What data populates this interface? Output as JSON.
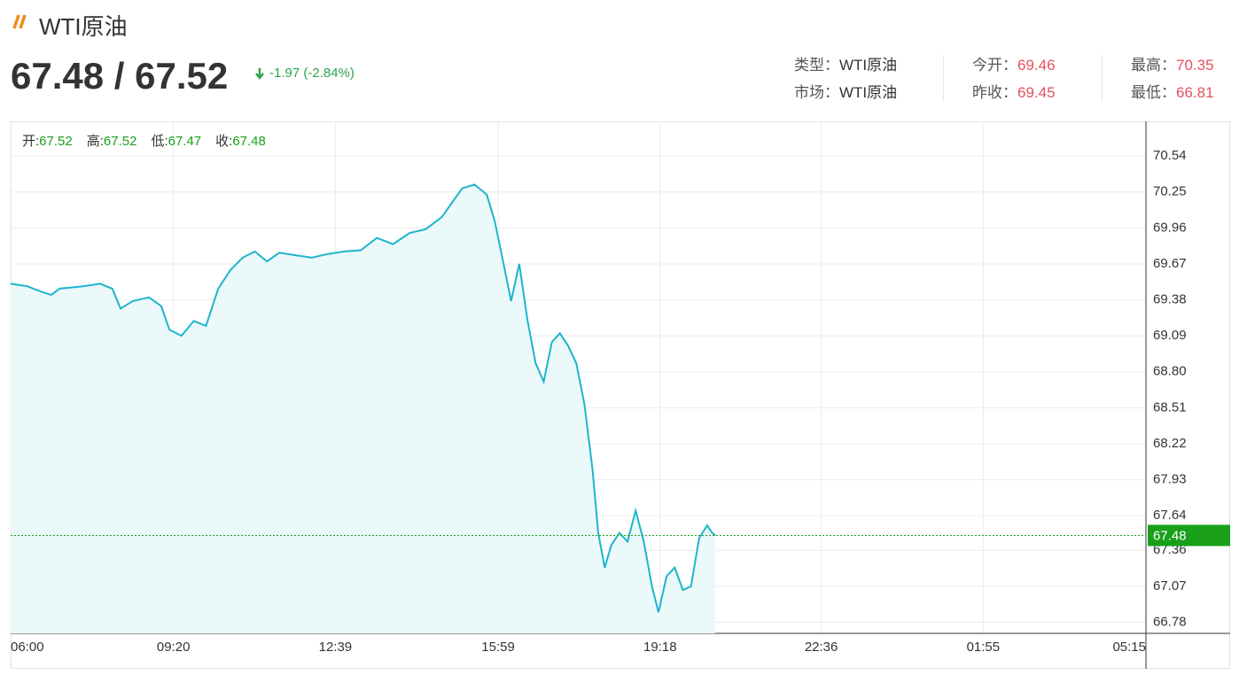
{
  "header": {
    "title": "WTI原油",
    "price": "67.48 / 67.52",
    "change": "-1.97 (-2.84%)"
  },
  "info": [
    [
      {
        "label": "类型：",
        "value": "WTI原油"
      },
      {
        "label": "今开：",
        "value": "69.46"
      },
      {
        "label": "最高：",
        "value": "70.35"
      }
    ],
    [
      {
        "label": "市场：",
        "value": "WTI原油"
      },
      {
        "label": "昨收：",
        "value": "69.45"
      },
      {
        "label": "最低：",
        "value": "66.81"
      }
    ]
  ],
  "chart_data": {
    "type": "line",
    "ohlc": [
      {
        "label": "开:",
        "value": 67.52
      },
      {
        "label": "高:",
        "value": 67.52
      },
      {
        "label": "低:",
        "value": 67.47
      },
      {
        "label": "收:",
        "value": 67.48
      }
    ],
    "x": [
      0,
      20,
      40,
      50,
      60,
      90,
      110,
      125,
      135,
      150,
      170,
      185,
      195,
      210,
      225,
      240,
      255,
      270,
      285,
      300,
      315,
      330,
      350,
      370,
      390,
      410,
      430,
      450,
      470,
      490,
      510,
      530,
      545,
      555,
      570,
      585,
      595,
      605,
      615,
      625,
      635,
      645,
      655,
      665,
      675,
      685,
      695,
      705,
      715,
      722,
      730,
      738,
      748,
      758,
      768,
      778,
      788,
      796,
      806,
      816,
      826,
      836,
      846,
      856,
      862,
      866
    ],
    "series": [
      {
        "color": "#1cb5cc",
        "fill": "#ecf9fb",
        "values": [
          69.51,
          69.49,
          69.44,
          69.42,
          69.47,
          69.49,
          69.51,
          69.47,
          69.31,
          69.37,
          69.4,
          69.33,
          69.14,
          69.09,
          69.21,
          69.17,
          69.47,
          69.62,
          69.72,
          69.77,
          69.69,
          69.76,
          69.74,
          69.72,
          69.75,
          69.77,
          69.78,
          69.88,
          69.83,
          69.92,
          69.95,
          70.05,
          70.19,
          70.28,
          70.31,
          70.23,
          70.01,
          69.69,
          69.37,
          69.67,
          69.22,
          68.87,
          68.72,
          69.04,
          69.11,
          69.01,
          68.87,
          68.54,
          68.01,
          67.5,
          67.22,
          67.4,
          67.5,
          67.43,
          67.68,
          67.43,
          67.07,
          66.86,
          67.15,
          67.22,
          67.04,
          67.07,
          67.46,
          67.56,
          67.5,
          67.48
        ]
      }
    ],
    "last_value": 67.48,
    "last_color": "#1a9f1a",
    "xlim": [
      0,
      1395
    ],
    "xticks": [
      {
        "value": 0,
        "label": "06:00"
      },
      {
        "value": 200,
        "label": "09:20"
      },
      {
        "value": 399,
        "label": "12:39"
      },
      {
        "value": 599,
        "label": "15:59"
      },
      {
        "value": 798,
        "label": "19:18"
      },
      {
        "value": 996,
        "label": "22:36"
      },
      {
        "value": 1195,
        "label": "01:55"
      },
      {
        "value": 1395,
        "label": "05:15"
      }
    ],
    "ylim": [
      66.69,
      70.82
    ],
    "yticks": [
      70.54,
      70.25,
      69.96,
      69.67,
      69.38,
      69.09,
      {
        "value": 68.8,
        "label": "68.80"
      },
      68.51,
      68.22,
      67.93,
      67.64,
      67.36,
      67.07,
      66.78
    ],
    "grid": true
  }
}
